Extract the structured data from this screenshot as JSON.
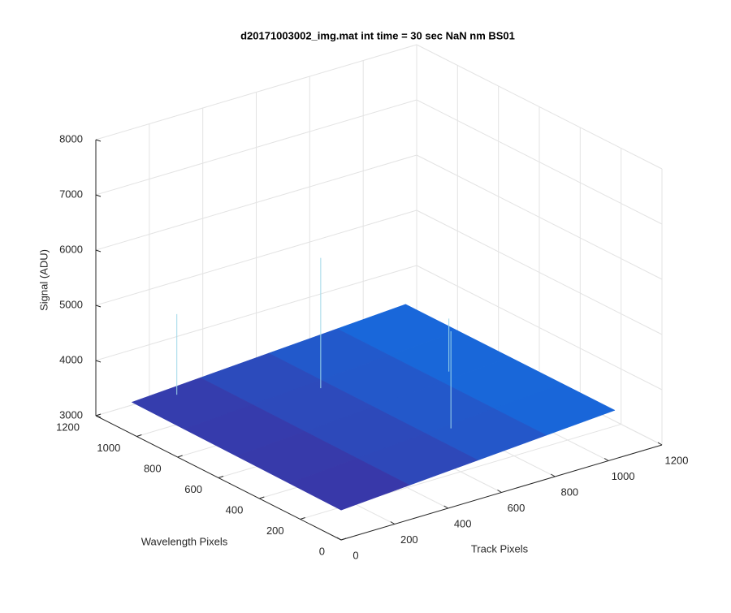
{
  "chart_data": {
    "type": "surface3d",
    "title": "d20171003002_img.mat int time = 30 sec  NaN nm BS01",
    "xlabel": "Track Pixels",
    "ylabel": "Wavelength Pixels",
    "zlabel": "Signal (ADU)",
    "xlim": [
      0,
      1200
    ],
    "ylim": [
      0,
      1200
    ],
    "zlim": [
      3000,
      8000
    ],
    "xticks": [
      0,
      200,
      400,
      600,
      800,
      1000,
      1200
    ],
    "yticks": [
      0,
      200,
      400,
      600,
      800,
      1000,
      1200
    ],
    "zticks": [
      3000,
      4000,
      5000,
      6000,
      7000,
      8000
    ],
    "grid": true,
    "x": [
      0,
      256,
      512,
      768,
      1024
    ],
    "y": [
      0,
      256,
      512,
      768,
      1024
    ],
    "z": [
      [
        3540,
        3625,
        3710,
        3795,
        3880
      ],
      [
        3549,
        3631,
        3714,
        3797,
        3880
      ],
      [
        3558,
        3638,
        3719,
        3799,
        3880
      ],
      [
        3566,
        3644,
        3723,
        3801,
        3880
      ],
      [
        3575,
        3651,
        3728,
        3804,
        3880
      ]
    ],
    "spikes": {
      "x": [
        150,
        520,
        640,
        900
      ],
      "y": [
        1000,
        780,
        300,
        650
      ],
      "z": [
        5000,
        5900,
        5300,
        4500
      ]
    }
  }
}
